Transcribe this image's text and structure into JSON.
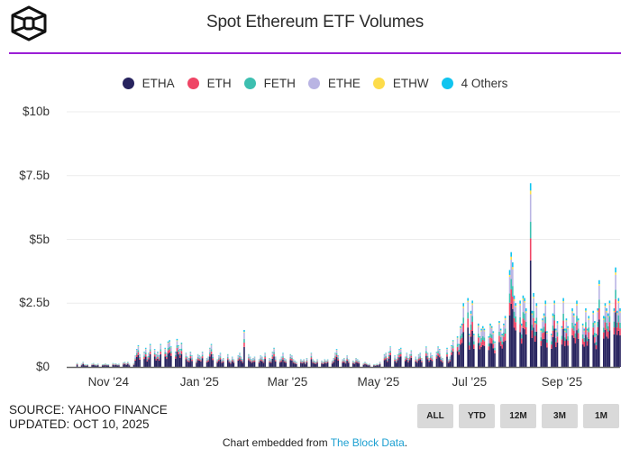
{
  "header": {
    "title": "Spot Ethereum ETF Volumes",
    "logo": "the-block-cube-logo"
  },
  "legend": [
    {
      "label": "ETHA",
      "color": "#27235e"
    },
    {
      "label": "ETH",
      "color": "#ef4565"
    },
    {
      "label": "FETH",
      "color": "#3dbfb0"
    },
    {
      "label": "ETHE",
      "color": "#b9b4e3"
    },
    {
      "label": "ETHW",
      "color": "#fddc4a"
    },
    {
      "label": "4 Others",
      "color": "#10c4ef"
    }
  ],
  "footer": {
    "source": "SOURCE: YAHOO FINANCE",
    "updated": "UPDATED: OCT 10, 2025",
    "embed_prefix": "Chart embedded from ",
    "embed_link": "The Block Data",
    "embed_suffix": "."
  },
  "range_buttons": [
    "ALL",
    "YTD",
    "12M",
    "3M",
    "1M"
  ],
  "chart_data": {
    "type": "bar",
    "stacked": true,
    "title": "Spot Ethereum ETF Volumes",
    "xlabel": "",
    "ylabel": "",
    "ylim": [
      0,
      10
    ],
    "y_unit": "$b",
    "y_ticks": [
      {
        "value": 0,
        "label": "$0"
      },
      {
        "value": 2.5,
        "label": "$2.5b"
      },
      {
        "value": 5,
        "label": "$5b"
      },
      {
        "value": 7.5,
        "label": "$7.5b"
      },
      {
        "value": 10,
        "label": "$10b"
      }
    ],
    "x_ticks": [
      {
        "date": "2024-11-01",
        "label": "Nov '24"
      },
      {
        "date": "2025-01-01",
        "label": "Jan '25"
      },
      {
        "date": "2025-03-01",
        "label": "Mar '25"
      },
      {
        "date": "2025-05-01",
        "label": "May '25"
      },
      {
        "date": "2025-07-01",
        "label": "Jul '25"
      },
      {
        "date": "2025-09-01",
        "label": "Sep '25"
      }
    ],
    "x_range": [
      "2024-10-04",
      "2025-10-10"
    ],
    "grid": true,
    "legend_position": "top",
    "series_names": [
      "ETHA",
      "ETH",
      "FETH",
      "ETHE",
      "ETHW",
      "4 Others"
    ],
    "series_share_approx": [
      0.58,
      0.12,
      0.09,
      0.15,
      0.02,
      0.04
    ],
    "daily_total_volume_b": [
      0.15,
      0.12,
      0.2,
      0.1,
      0.08,
      0.1,
      0.12,
      0.15,
      0.1,
      0.09,
      0.12,
      0.1,
      0.11,
      0.13,
      0.1,
      0.1,
      0.15,
      0.12,
      0.14,
      0.1,
      0.12,
      0.18,
      0.2,
      0.14,
      0.2,
      0.12,
      0.15,
      0.45,
      0.7,
      0.85,
      0.5,
      0.6,
      0.75,
      0.4,
      0.55,
      0.9,
      0.7,
      0.5,
      0.6,
      0.45,
      0.9,
      0.75,
      0.55,
      1.0,
      1.05,
      0.8,
      0.6,
      1.1,
      0.85,
      0.7,
      0.95,
      0.55,
      0.4,
      0.35,
      0.6,
      0.45,
      0.3,
      0.5,
      0.45,
      0.4,
      0.6,
      0.35,
      0.4,
      0.75,
      0.9,
      0.5,
      0.3,
      0.45,
      0.55,
      0.3,
      0.35,
      0.5,
      0.3,
      0.25,
      0.4,
      0.3,
      0.45,
      0.55,
      0.4,
      0.3,
      1.45,
      0.5,
      0.4,
      0.3,
      0.35,
      0.4,
      0.3,
      0.45,
      0.4,
      0.3,
      0.55,
      0.35,
      0.3,
      0.6,
      0.75,
      0.4,
      0.3,
      0.4,
      0.55,
      0.35,
      0.3,
      0.5,
      0.45,
      0.3,
      0.25,
      0.2,
      0.3,
      0.25,
      0.3,
      0.2,
      0.35,
      0.55,
      0.3,
      0.25,
      0.2,
      0.3,
      0.25,
      0.2,
      0.3,
      0.25,
      0.3,
      0.25,
      0.35,
      0.55,
      0.7,
      0.45,
      0.3,
      0.35,
      0.25,
      0.45,
      0.3,
      0.25,
      0.2,
      0.35,
      0.3,
      0.25,
      0.15,
      0.2,
      0.15,
      0.1,
      0.12,
      0.1,
      0.08,
      0.12,
      0.1,
      0.2,
      0.5,
      0.55,
      0.35,
      0.6,
      0.8,
      0.45,
      0.3,
      0.5,
      0.7,
      0.75,
      0.4,
      0.55,
      0.35,
      0.5,
      0.65,
      0.4,
      0.3,
      0.5,
      0.55,
      0.35,
      0.8,
      0.55,
      0.35,
      0.55,
      0.45,
      0.6,
      0.8,
      0.7,
      0.4,
      0.35,
      0.75,
      0.3,
      0.4,
      0.85,
      1.05,
      1.2,
      0.9,
      1.6,
      1.7,
      2.5,
      2.7,
      1.3,
      2.2,
      2.6,
      1.3,
      1.7,
      1.2,
      1.5,
      1.6,
      1.5,
      1.2,
      1.7,
      1.6,
      1.4,
      1.0,
      1.8,
      1.5,
      1.3,
      1.7,
      2.0,
      3.8,
      4.5,
      4.1,
      2.8,
      2.5,
      2.6,
      1.7,
      2.8,
      2.7,
      2.3,
      7.2,
      2.2,
      2.9,
      1.8,
      2.5,
      1.5,
      1.9,
      2.1,
      2.6,
      1.4,
      1.3,
      2.1,
      2.6,
      1.5,
      1.8,
      1.6,
      2.7,
      1.5,
      1.9,
      1.6,
      2.3,
      2.1,
      1.7,
      2.6,
      1.9,
      1.7,
      1.5,
      2.3,
      1.5,
      2.0,
      2.2,
      1.8,
      1.3,
      2.3,
      3.4,
      2.0,
      2.5,
      2.3,
      2.1,
      2.6,
      2.3,
      3.9,
      2.2,
      2.7,
      2.3
    ]
  }
}
